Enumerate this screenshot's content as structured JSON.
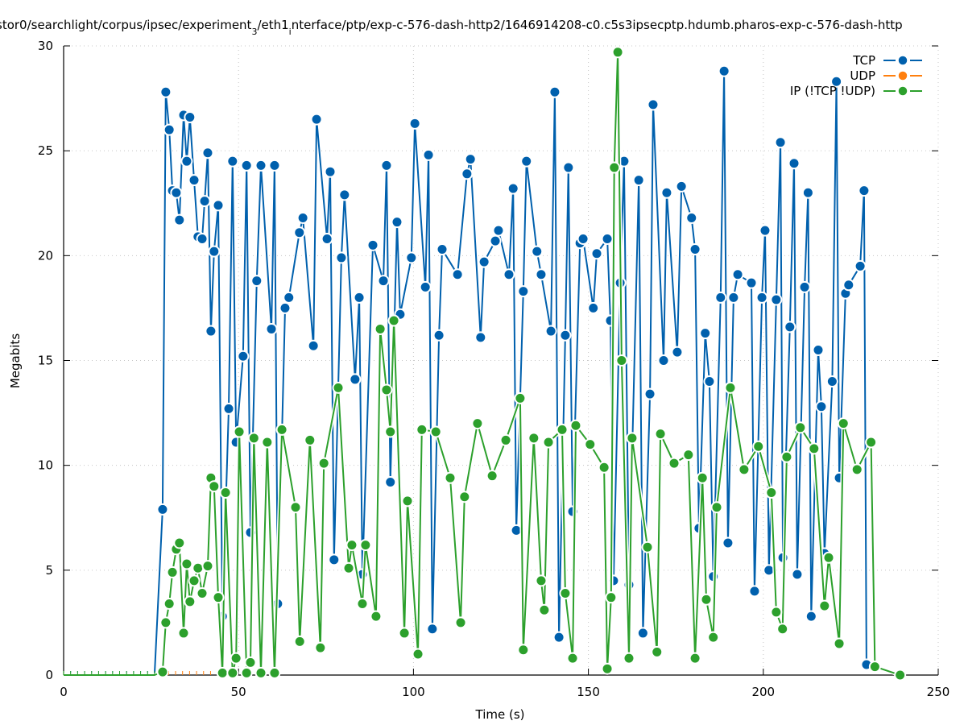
{
  "chart_data": {
    "type": "line",
    "title": "stor0/searchlight/corpus/ipsec/experiment_3/eth1_interface/ptp/exp-c-576-dash-http2/1646914208-c0.c5s3ipsecptp.hdumb.pharos-exp-c-576-dash-http",
    "title_display": "stor0/searchlight/corpus/ipsec/experiment",
    "title_sub1": "3",
    "title_mid": "/eth1",
    "title_sub2": "i",
    "title_rest": "nterface/ptp/exp-c-576-dash-http2/1646914208-c0.c5s3ipsecptp.hdumb.pharos-exp-c-576-dash-http",
    "xlabel": "Time (s)",
    "ylabel": "Megabits",
    "xlim": [
      0,
      250
    ],
    "ylim": [
      0,
      30
    ],
    "xticks": [
      0,
      50,
      100,
      150,
      200,
      250
    ],
    "yticks": [
      0,
      5,
      10,
      15,
      20,
      25,
      30
    ],
    "grid": true,
    "legend_position": "top-right",
    "series": [
      {
        "name": "TCP",
        "color": "#0060ad",
        "x": [
          0,
          2,
          4,
          6,
          8,
          10,
          12,
          14,
          16,
          18,
          20,
          22,
          24,
          26,
          28.3,
          29.2,
          30.2,
          31.1,
          32.2,
          33.1,
          34.3,
          35.2,
          36.1,
          37.3,
          38.4,
          39.6,
          40.3,
          41.2,
          42.1,
          43.0,
          44.2,
          45.4,
          47.2,
          48.3,
          49.3,
          51.3,
          52.3,
          53.4,
          55.2,
          56.4,
          59.4,
          60.3,
          61.2,
          63.3,
          64.4,
          67.4,
          68.4,
          71.4,
          72.3,
          75.3,
          76.2,
          77.3,
          79.4,
          80.3,
          83.3,
          84.5,
          85.4,
          88.4,
          91.4,
          92.3,
          93.4,
          95.3,
          96.2,
          99.4,
          100.4,
          103.4,
          104.3,
          105.4,
          107.3,
          108.2,
          112.6,
          115.3,
          116.3,
          119.2,
          120.2,
          123.4,
          124.3,
          127.3,
          128.5,
          129.4,
          131.4,
          132.3,
          135.3,
          136.5,
          139.3,
          140.4,
          141.6,
          143.4,
          144.3,
          145.5,
          147.6,
          148.5,
          151.4,
          152.4,
          155.4,
          156.3,
          157.2,
          159.1,
          160.2,
          161.6,
          164.4,
          165.6,
          167.6,
          168.5,
          171.5,
          172.4,
          175.4,
          176.6,
          179.5,
          180.5,
          181.6,
          183.4,
          184.6,
          185.7,
          187.8,
          188.8,
          189.9,
          191.5,
          192.7,
          196.6,
          197.5,
          199.6,
          200.5,
          201.6,
          203.7,
          204.9,
          205.6,
          207.6,
          208.8,
          209.7,
          211.8,
          212.8,
          213.7,
          215.7,
          216.6,
          217.5,
          219.7,
          220.9,
          221.7,
          223.5,
          224.4,
          227.7,
          228.8,
          229.5
        ],
        "y": [
          0,
          0,
          0,
          0,
          0,
          0,
          0,
          0,
          0,
          0,
          0,
          0,
          0,
          0,
          7.9,
          27.8,
          26.0,
          23.1,
          23.0,
          21.7,
          26.7,
          24.5,
          26.6,
          23.6,
          20.9,
          20.8,
          22.6,
          24.9,
          16.4,
          20.2,
          22.4,
          2.8,
          12.7,
          24.5,
          11.1,
          15.2,
          24.3,
          6.8,
          18.8,
          24.3,
          16.5,
          24.3,
          3.4,
          17.5,
          18.0,
          21.1,
          21.8,
          15.7,
          26.5,
          20.8,
          24.0,
          5.5,
          19.9,
          22.9,
          14.1,
          18.0,
          4.8,
          20.5,
          18.8,
          24.3,
          9.2,
          21.6,
          17.2,
          19.9,
          26.3,
          18.5,
          24.8,
          2.2,
          16.2,
          20.3,
          19.1,
          23.9,
          24.6,
          16.1,
          19.7,
          20.7,
          21.2,
          19.1,
          23.2,
          6.9,
          18.3,
          24.5,
          20.2,
          19.1,
          16.4,
          27.8,
          1.8,
          16.2,
          24.2,
          7.8,
          20.6,
          20.8,
          17.5,
          20.1,
          20.8,
          16.9,
          4.5,
          18.7,
          24.5,
          4.3,
          23.6,
          2.0,
          13.4,
          27.2,
          15.0,
          23.0,
          15.4,
          23.3,
          21.8,
          20.3,
          7.0,
          16.3,
          14.0,
          4.7,
          18.0,
          28.8,
          6.3,
          18.0,
          19.1,
          18.7,
          4.0,
          18.0,
          21.2,
          5.0,
          17.9,
          25.4,
          5.6,
          16.6,
          24.4,
          4.8,
          18.5,
          23.0,
          2.8,
          15.5,
          12.8,
          5.8,
          14.0,
          28.3,
          9.4,
          18.2,
          18.6,
          19.5,
          23.1,
          0.5
        ]
      },
      {
        "name": "UDP",
        "color": "#ff7f0e",
        "x": [
          30,
          32,
          34,
          36,
          38,
          40,
          42,
          44,
          46
        ],
        "y": [
          0,
          0,
          0,
          0,
          0,
          0,
          0,
          0,
          0
        ]
      },
      {
        "name": "IP (!TCP !UDP)",
        "color": "#2ca02c",
        "x": [
          0,
          2,
          4,
          6,
          8,
          10,
          12,
          14,
          16,
          18,
          20,
          22,
          24,
          26,
          28.3,
          29.2,
          30.2,
          31.1,
          32.2,
          33.1,
          34.3,
          35.2,
          36.1,
          37.3,
          38.4,
          39.6,
          41.2,
          42.1,
          43.0,
          44.2,
          45.4,
          46.3,
          48.3,
          49.3,
          50.2,
          52.3,
          53.4,
          54.4,
          56.4,
          58.2,
          60.3,
          62.4,
          66.3,
          67.5,
          70.4,
          73.4,
          74.4,
          78.5,
          81.5,
          82.4,
          85.4,
          86.3,
          89.3,
          90.5,
          92.3,
          93.4,
          94.4,
          97.4,
          98.3,
          101.3,
          102.4,
          106.4,
          110.5,
          113.5,
          114.6,
          118.3,
          122.5,
          126.4,
          130.5,
          131.4,
          134.4,
          136.5,
          137.4,
          138.6,
          142.5,
          143.4,
          145.5,
          146.4,
          150.5,
          154.5,
          155.4,
          156.5,
          157.4,
          158.4,
          159.5,
          161.6,
          162.5,
          166.9,
          169.6,
          170.6,
          174.5,
          178.6,
          180.5,
          182.6,
          183.7,
          185.7,
          186.7,
          190.6,
          194.5,
          198.6,
          202.3,
          203.7,
          205.5,
          206.7,
          210.6,
          214.5,
          217.5,
          218.7,
          221.7,
          222.9,
          226.8,
          230.8,
          231.9,
          239.1
        ],
        "y": [
          0,
          0,
          0,
          0,
          0,
          0,
          0,
          0,
          0,
          0,
          0,
          0,
          0,
          0,
          0.15,
          2.5,
          3.4,
          4.9,
          6.0,
          6.3,
          2.0,
          5.3,
          3.5,
          4.5,
          5.1,
          3.9,
          5.2,
          9.4,
          9.0,
          3.7,
          0.1,
          8.7,
          0.1,
          0.8,
          11.6,
          0.1,
          0.6,
          11.3,
          0.1,
          11.1,
          0.1,
          11.7,
          8.0,
          1.6,
          11.2,
          1.3,
          10.1,
          13.7,
          5.1,
          6.2,
          3.4,
          6.2,
          2.8,
          16.5,
          13.6,
          11.6,
          16.9,
          2.0,
          8.3,
          1.0,
          11.7,
          11.6,
          9.4,
          2.5,
          8.5,
          12.0,
          9.5,
          11.2,
          13.2,
          1.2,
          11.3,
          4.5,
          3.1,
          11.1,
          11.7,
          3.9,
          0.8,
          11.9,
          11.0,
          9.9,
          0.3,
          3.7,
          24.2,
          29.7,
          15.0,
          0.8,
          11.3,
          6.1,
          1.1,
          11.5,
          10.1,
          10.5,
          0.8,
          9.4,
          3.6,
          1.8,
          8.0,
          13.7,
          9.8,
          10.9,
          8.7,
          3.0,
          2.2,
          10.4,
          11.8,
          10.8,
          3.3,
          5.6,
          1.5,
          12.0,
          9.8,
          11.1,
          0.4,
          0
        ]
      }
    ]
  }
}
